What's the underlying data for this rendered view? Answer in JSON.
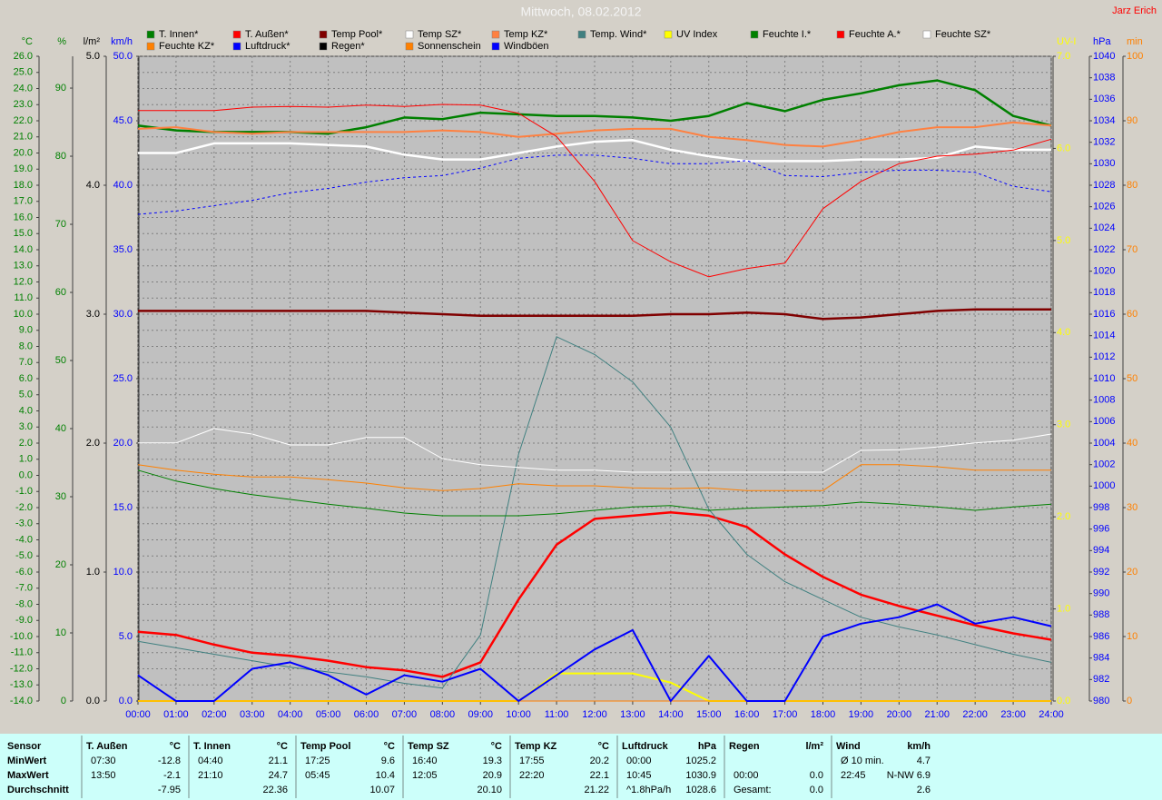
{
  "chart_data": {
    "type": "line",
    "title": "Mittwoch, 08.02.2012",
    "author": "Jarz Erich",
    "grid": true,
    "x": [
      0,
      1,
      2,
      3,
      4,
      5,
      6,
      7,
      8,
      9,
      10,
      11,
      12,
      13,
      14,
      15,
      16,
      17,
      18,
      19,
      20,
      21,
      22,
      23,
      24
    ],
    "xlim": [
      0,
      24
    ],
    "xticks": [
      {
        "value": 0,
        "label": "00:00"
      },
      {
        "value": 1,
        "label": "01:00"
      },
      {
        "value": 2,
        "label": "02:00"
      },
      {
        "value": 3,
        "label": "03:00"
      },
      {
        "value": 4,
        "label": "04:00"
      },
      {
        "value": 5,
        "label": "05:00"
      },
      {
        "value": 6,
        "label": "06:00"
      },
      {
        "value": 7,
        "label": "07:00"
      },
      {
        "value": 8,
        "label": "08:00"
      },
      {
        "value": 9,
        "label": "09:00"
      },
      {
        "value": 10,
        "label": "10:00"
      },
      {
        "value": 11,
        "label": "11:00"
      },
      {
        "value": 12,
        "label": "12:00"
      },
      {
        "value": 13,
        "label": "13:00"
      },
      {
        "value": 14,
        "label": "14:00"
      },
      {
        "value": 15,
        "label": "15:00"
      },
      {
        "value": 16,
        "label": "16:00"
      },
      {
        "value": 17,
        "label": "17:00"
      },
      {
        "value": 18,
        "label": "18:00"
      },
      {
        "value": 19,
        "label": "19:00"
      },
      {
        "value": 20,
        "label": "20:00"
      },
      {
        "value": 21,
        "label": "21:00"
      },
      {
        "value": 22,
        "label": "22:00"
      },
      {
        "value": 23,
        "label": "23:00"
      },
      {
        "value": 24,
        "label": "24:00"
      }
    ],
    "axes": [
      {
        "label": "°C",
        "side": "left",
        "color": "#008000",
        "lim": [
          -14,
          26
        ],
        "ticks": [
          {
            "value": -14,
            "label": "-14.0"
          },
          {
            "value": -13,
            "label": "-13.0"
          },
          {
            "value": -12,
            "label": "-12.0"
          },
          {
            "value": -11,
            "label": "-11.0"
          },
          {
            "value": -10,
            "label": "-10.0"
          },
          {
            "value": -9,
            "label": "-9.0"
          },
          {
            "value": -8,
            "label": "-8.0"
          },
          {
            "value": -7,
            "label": "-7.0"
          },
          {
            "value": -6,
            "label": "-6.0"
          },
          {
            "value": -5,
            "label": "-5.0"
          },
          {
            "value": -4,
            "label": "-4.0"
          },
          {
            "value": -3,
            "label": "-3.0"
          },
          {
            "value": -2,
            "label": "-2.0"
          },
          {
            "value": -1,
            "label": "-1.0"
          },
          {
            "value": 0,
            "label": "0.0"
          },
          {
            "value": 1,
            "label": "1.0"
          },
          {
            "value": 2,
            "label": "2.0"
          },
          {
            "value": 3,
            "label": "3.0"
          },
          {
            "value": 4,
            "label": "4.0"
          },
          {
            "value": 5,
            "label": "5.0"
          },
          {
            "value": 6,
            "label": "6.0"
          },
          {
            "value": 7,
            "label": "7.0"
          },
          {
            "value": 8,
            "label": "8.0"
          },
          {
            "value": 9,
            "label": "9.0"
          },
          {
            "value": 10,
            "label": "10.0"
          },
          {
            "value": 11,
            "label": "11.0"
          },
          {
            "value": 12,
            "label": "12.0"
          },
          {
            "value": 13,
            "label": "13.0"
          },
          {
            "value": 14,
            "label": "14.0"
          },
          {
            "value": 15,
            "label": "15.0"
          },
          {
            "value": 16,
            "label": "16.0"
          },
          {
            "value": 17,
            "label": "17.0"
          },
          {
            "value": 18,
            "label": "18.0"
          },
          {
            "value": 19,
            "label": "19.0"
          },
          {
            "value": 20,
            "label": "20.0"
          },
          {
            "value": 21,
            "label": "21.0"
          },
          {
            "value": 22,
            "label": "22.0"
          },
          {
            "value": 23,
            "label": "23.0"
          },
          {
            "value": 24,
            "label": "24.0"
          },
          {
            "value": 25,
            "label": "25.0"
          },
          {
            "value": 26,
            "label": "26.0"
          }
        ]
      },
      {
        "label": "%",
        "side": "left",
        "color": "#008000",
        "lim": [
          0,
          94.67
        ],
        "ticks": [
          0,
          10,
          20,
          30,
          40,
          50,
          60,
          70,
          80,
          90
        ]
      },
      {
        "label": "l/m²",
        "side": "left",
        "color": "#000000",
        "lim": [
          0,
          5
        ],
        "ticks": [
          {
            "value": 0,
            "label": "0.0"
          },
          {
            "value": 1,
            "label": "1.0"
          },
          {
            "value": 2,
            "label": "2.0"
          },
          {
            "value": 3,
            "label": "3.0"
          },
          {
            "value": 4,
            "label": "4.0"
          },
          {
            "value": 5,
            "label": "5.0"
          }
        ]
      },
      {
        "label": "km/h",
        "side": "left",
        "color": "#0000ff",
        "lim": [
          0,
          50
        ],
        "ticks": [
          {
            "value": 0,
            "label": "0.0"
          },
          {
            "value": 5,
            "label": "5.0"
          },
          {
            "value": 10,
            "label": "10.0"
          },
          {
            "value": 15,
            "label": "15.0"
          },
          {
            "value": 20,
            "label": "20.0"
          },
          {
            "value": 25,
            "label": "25.0"
          },
          {
            "value": 30,
            "label": "30.0"
          },
          {
            "value": 35,
            "label": "35.0"
          },
          {
            "value": 40,
            "label": "40.0"
          },
          {
            "value": 45,
            "label": "45.0"
          },
          {
            "value": 50,
            "label": "50.0"
          }
        ]
      },
      {
        "label": "UV-I",
        "side": "right",
        "color": "#ffff00",
        "lim": [
          0,
          7
        ],
        "ticks": [
          {
            "value": 0,
            "label": "0.0"
          },
          {
            "value": 1,
            "label": "1.0"
          },
          {
            "value": 2,
            "label": "2.0"
          },
          {
            "value": 3,
            "label": "3.0"
          },
          {
            "value": 4,
            "label": "4.0"
          },
          {
            "value": 5,
            "label": "5.0"
          },
          {
            "value": 6,
            "label": "6.0"
          },
          {
            "value": 7,
            "label": "7.0"
          }
        ]
      },
      {
        "label": "hPa",
        "side": "right",
        "color": "#0000ff",
        "lim": [
          980,
          1040
        ],
        "ticks": [
          980,
          982,
          984,
          986,
          988,
          990,
          992,
          994,
          996,
          998,
          1000,
          1002,
          1004,
          1006,
          1008,
          1010,
          1012,
          1014,
          1016,
          1018,
          1020,
          1022,
          1024,
          1026,
          1028,
          1030,
          1032,
          1034,
          1036,
          1038,
          1040
        ]
      },
      {
        "label": "min",
        "side": "right",
        "color": "#ff8000",
        "lim": [
          0,
          100
        ],
        "ticks": [
          0,
          10,
          20,
          30,
          40,
          50,
          60,
          70,
          80,
          90,
          100
        ]
      }
    ],
    "series": [
      {
        "name": "T. Innen*",
        "color": "#008000",
        "axis": 0,
        "values": [
          21.7,
          21.4,
          21.3,
          21.3,
          21.3,
          21.2,
          21.6,
          22.2,
          22.1,
          22.5,
          22.4,
          22.3,
          22.3,
          22.2,
          22.0,
          22.3,
          23.1,
          22.6,
          23.3,
          23.7,
          24.2,
          24.5,
          23.9,
          22.3,
          21.7
        ]
      },
      {
        "name": "T. Außen*",
        "color": "#ff0000",
        "axis": 0,
        "values": [
          -9.7,
          -9.9,
          -10.5,
          -11.0,
          -11.2,
          -11.5,
          -11.9,
          -12.1,
          -12.5,
          -11.6,
          -7.7,
          -4.3,
          -2.7,
          -2.5,
          -2.3,
          -2.5,
          -3.2,
          -4.9,
          -6.3,
          -7.4,
          -8.1,
          -8.7,
          -9.3,
          -9.8,
          -10.2
        ]
      },
      {
        "name": "Temp Pool*",
        "color": "#800000",
        "axis": 0,
        "values": [
          10.2,
          10.2,
          10.2,
          10.2,
          10.2,
          10.2,
          10.2,
          10.1,
          10.0,
          9.9,
          9.9,
          9.9,
          9.9,
          9.9,
          10.0,
          10.0,
          10.1,
          10.0,
          9.7,
          9.8,
          10.0,
          10.2,
          10.3,
          10.3,
          10.3
        ]
      },
      {
        "name": "Temp SZ*",
        "color": "#ffffff",
        "axis": 0,
        "values": [
          20.0,
          20.0,
          20.6,
          20.6,
          20.6,
          20.5,
          20.4,
          19.9,
          19.6,
          19.6,
          20.0,
          20.4,
          20.7,
          20.8,
          20.2,
          19.8,
          19.5,
          19.5,
          19.5,
          19.6,
          19.6,
          19.7,
          20.4,
          20.2,
          20.2
        ]
      },
      {
        "name": "Temp KZ*",
        "color": "#ff8040",
        "axis": 0,
        "values": [
          21.5,
          21.6,
          21.3,
          21.2,
          21.3,
          21.3,
          21.3,
          21.3,
          21.4,
          21.3,
          21.0,
          21.2,
          21.4,
          21.5,
          21.5,
          21.0,
          20.8,
          20.5,
          20.4,
          20.8,
          21.3,
          21.6,
          21.6,
          21.9,
          21.7
        ]
      },
      {
        "name": "Temp. Wind*",
        "color": "#408080",
        "axis": 0,
        "values": [
          -10.3,
          -10.7,
          -11.1,
          -11.5,
          -11.9,
          -12.2,
          -12.5,
          -12.9,
          -13.2,
          -9.9,
          1.3,
          8.6,
          7.5,
          5.8,
          3.0,
          -2.1,
          -4.9,
          -6.6,
          -7.7,
          -8.8,
          -9.4,
          -9.9,
          -10.5,
          -11.1,
          -11.6
        ]
      },
      {
        "name": "UV Index",
        "color": "#ffff00",
        "axis": 4,
        "values": [
          0,
          0,
          0,
          0,
          0,
          0,
          0,
          0,
          0,
          0,
          0,
          0.3,
          0.3,
          0.3,
          0.2,
          0,
          0,
          0,
          0,
          0,
          0,
          0,
          0,
          0,
          0
        ]
      },
      {
        "name": "Feuchte I.*",
        "color": "#008000",
        "axis": 1,
        "values": [
          33.9,
          32.3,
          31.2,
          30.3,
          29.6,
          28.9,
          28.3,
          27.6,
          27.2,
          27.2,
          27.2,
          27.5,
          28.0,
          28.5,
          28.7,
          28.0,
          28.3,
          28.5,
          28.7,
          29.2,
          28.9,
          28.5,
          28.0,
          28.5,
          28.9
        ]
      },
      {
        "name": "Feuchte A.*",
        "color": "#ff0000",
        "axis": 1,
        "values": [
          86.7,
          86.7,
          86.7,
          87.2,
          87.3,
          87.2,
          87.5,
          87.3,
          87.6,
          87.5,
          86.3,
          82.9,
          76.3,
          67.6,
          64.5,
          62.3,
          63.5,
          64.3,
          72.3,
          76.3,
          78.9,
          80.0,
          80.3,
          80.9,
          82.5
        ]
      },
      {
        "name": "Feuchte SZ*",
        "color": "#ffffff",
        "axis": 1,
        "values": [
          37.9,
          37.9,
          40.0,
          39.2,
          37.6,
          37.6,
          38.7,
          38.7,
          35.6,
          34.7,
          34.3,
          33.9,
          33.9,
          33.6,
          33.6,
          33.6,
          33.6,
          33.6,
          33.6,
          36.8,
          36.9,
          37.3,
          37.9,
          38.3,
          39.2
        ]
      },
      {
        "name": "Feuchte KZ*",
        "color": "#ff8000",
        "axis": 1,
        "values": [
          34.7,
          33.9,
          33.3,
          32.9,
          32.9,
          32.5,
          32.0,
          31.3,
          30.9,
          31.2,
          31.9,
          31.6,
          31.6,
          31.3,
          31.2,
          31.3,
          30.9,
          30.9,
          30.9,
          34.7,
          34.7,
          34.4,
          33.9,
          33.9,
          33.9
        ]
      },
      {
        "name": "Luftdruck*",
        "color": "#0000ff",
        "axis": 5,
        "style": "dashed",
        "values": [
          1025.3,
          1025.6,
          1026.1,
          1026.6,
          1027.3,
          1027.7,
          1028.3,
          1028.7,
          1028.9,
          1029.6,
          1030.5,
          1030.8,
          1030.8,
          1030.5,
          1030.0,
          1030.0,
          1030.3,
          1028.9,
          1028.8,
          1029.2,
          1029.4,
          1029.4,
          1029.2,
          1027.9,
          1027.4
        ]
      },
      {
        "name": "Regen*",
        "color": "#000000",
        "axis": 2,
        "values": [
          0,
          0,
          0,
          0,
          0,
          0,
          0,
          0,
          0,
          0,
          0,
          0,
          0,
          0,
          0,
          0,
          0,
          0,
          0,
          0,
          0,
          0,
          0,
          0,
          0
        ]
      },
      {
        "name": "Sonnenschein",
        "color": "#ff8000",
        "axis": 6,
        "values": [
          0,
          0,
          0,
          0,
          0,
          0,
          0,
          0,
          0,
          0,
          0,
          0,
          0,
          0,
          0,
          0,
          0,
          0,
          0,
          0,
          0,
          0,
          0,
          0,
          0
        ]
      },
      {
        "name": "Windböen",
        "color": "#0000ff",
        "axis": 3,
        "values": [
          2.0,
          0,
          0,
          2.5,
          3.0,
          2.0,
          0.5,
          2.0,
          1.5,
          2.5,
          0,
          2.0,
          4.0,
          5.5,
          0,
          3.5,
          0,
          0,
          5.0,
          6.0,
          6.5,
          7.5,
          6.0,
          6.5,
          5.8
        ]
      }
    ]
  },
  "table": {
    "row_labels": [
      "Sensor",
      "MinWert",
      "MaxWert",
      "Durchschnitt"
    ],
    "groups": [
      {
        "name": "T. Außen",
        "unit": "°C",
        "min": [
          "07:30",
          "-12.8"
        ],
        "max": [
          "13:50",
          "-2.1"
        ],
        "avg": [
          "-7.95"
        ]
      },
      {
        "name": "T. Innen",
        "unit": "°C",
        "min": [
          "04:40",
          "21.1"
        ],
        "max": [
          "21:10",
          "24.7"
        ],
        "avg": [
          "22.36"
        ]
      },
      {
        "name": "Temp Pool",
        "unit": "°C",
        "min": [
          "17:25",
          "9.6"
        ],
        "max": [
          "05:45",
          "10.4"
        ],
        "avg": [
          "10.07"
        ]
      },
      {
        "name": "Temp SZ",
        "unit": "°C",
        "min": [
          "16:40",
          "19.3"
        ],
        "max": [
          "12:05",
          "20.9"
        ],
        "avg": [
          "20.10"
        ]
      },
      {
        "name": "Temp KZ",
        "unit": "°C",
        "min": [
          "17:55",
          "20.2"
        ],
        "max": [
          "22:20",
          "22.1"
        ],
        "avg": [
          "21.22"
        ]
      },
      {
        "name": "Luftdruck",
        "unit": "hPa",
        "min": [
          "00:00",
          "1025.2"
        ],
        "max": [
          "10:45",
          "1030.9"
        ],
        "avg": [
          "^1.8hPa/h",
          "1028.6"
        ]
      },
      {
        "name": "Regen",
        "unit": "l/m²",
        "max": [
          "00:00",
          "0.0"
        ],
        "avg": [
          "Gesamt:",
          "0.0"
        ]
      },
      {
        "name": "Wind",
        "unit": "km/h",
        "min": [
          "Ø 10 min.",
          "4.7"
        ],
        "max": [
          "22:45",
          "N-NW 6.9"
        ],
        "avg": [
          "2.6"
        ]
      }
    ]
  }
}
